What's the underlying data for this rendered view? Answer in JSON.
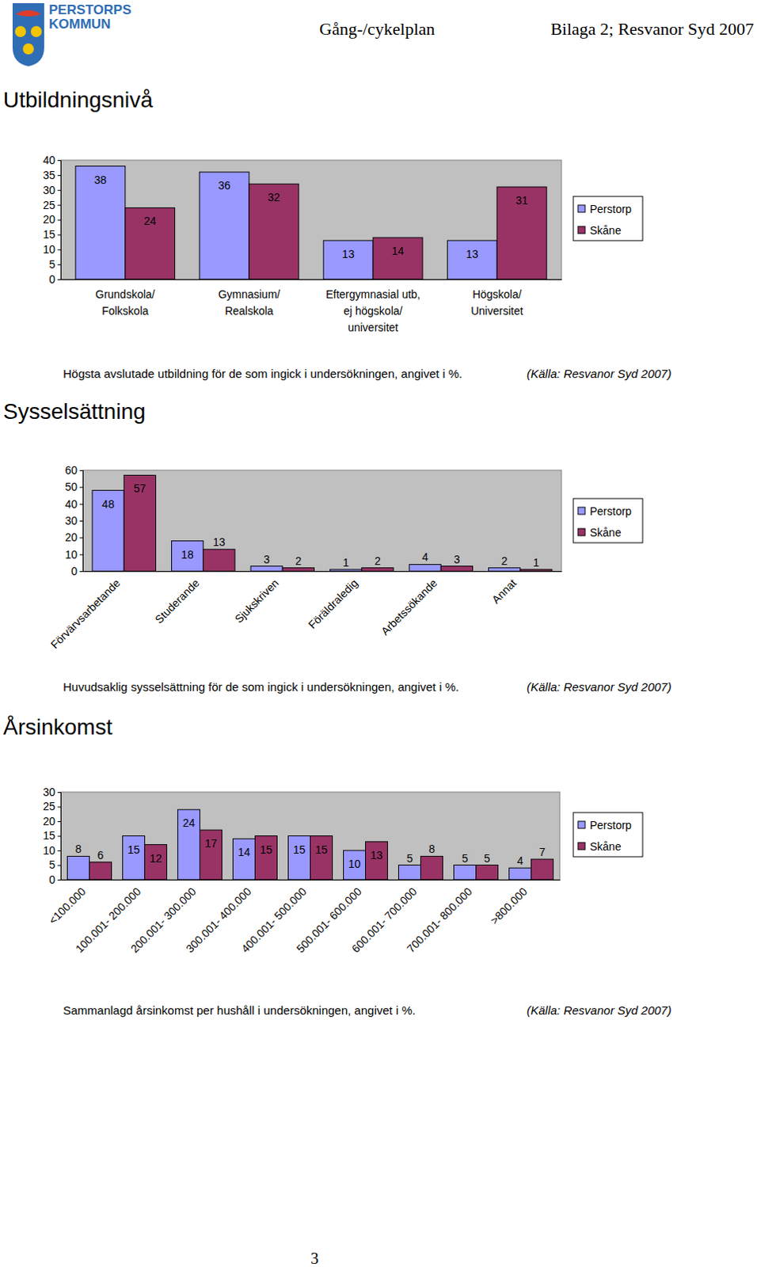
{
  "page": {
    "logo": [
      "PERSTORPS",
      "KOMMUN"
    ],
    "header_left": "Gång-/cykelplan",
    "header_right": "Bilaga 2; Resvanor Syd 2007",
    "page_number": "3"
  },
  "chart_data": [
    {
      "type": "bar",
      "title": "Utbildningsnivå",
      "subtitle": "Högsta avslutade utbildning för de som ingick i undersökningen, angivet i %.",
      "annotations": [
        "(Källa: Resvanor Syd 2007)"
      ],
      "categories": [
        "Grundskola/\nFolkskola",
        "Gymnasium/\nRealskola",
        "Eftergymnasial utb,\nej högskola/\nuniversitet",
        "Högskola/\nUniversitet"
      ],
      "series": [
        {
          "name": "Perstorp",
          "color": "#9999ff",
          "values": [
            38,
            36,
            13,
            13
          ]
        },
        {
          "name": "Skåne",
          "color": "#993366",
          "values": [
            24,
            32,
            14,
            31
          ]
        }
      ],
      "ylim": [
        0,
        40
      ],
      "yticks": [
        0,
        5,
        10,
        15,
        20,
        25,
        30,
        35,
        40
      ],
      "grid": false,
      "legend": "right",
      "data_labels": true
    },
    {
      "type": "bar",
      "title": "Sysselsättning",
      "subtitle": "Huvudsaklig sysselsättning för de som ingick i undersökningen, angivet i %.",
      "annotations": [
        "(Källa: Resvanor Syd 2007)"
      ],
      "categories": [
        "Förvärvsarbetande",
        "Studerande",
        "Sjukskriven",
        "Föräldraledig",
        "Arbetssökande",
        "Annat"
      ],
      "series": [
        {
          "name": "Perstorp",
          "color": "#9999ff",
          "values": [
            48,
            18,
            3,
            1,
            4,
            2
          ]
        },
        {
          "name": "Skåne",
          "color": "#993366",
          "values": [
            57,
            13,
            2,
            2,
            3,
            1
          ]
        }
      ],
      "ylim": [
        0,
        60
      ],
      "yticks": [
        0,
        10,
        20,
        30,
        40,
        50,
        60
      ],
      "grid": false,
      "legend": "right",
      "data_labels": true
    },
    {
      "type": "bar",
      "title": "Årsinkomst",
      "subtitle": "Sammanlagd årsinkomst per hushåll i undersökningen, angivet i %.",
      "annotations": [
        "(Källa: Resvanor Syd 2007)"
      ],
      "categories": [
        "<100.000",
        "100.001- 200.000",
        "200.001- 300.000",
        "300.001- 400.000",
        "400.001- 500.000",
        "500.001- 600.000",
        "600.001- 700.000",
        "700.001- 800.000",
        ">800.000"
      ],
      "series": [
        {
          "name": "Perstorp",
          "color": "#9999ff",
          "values": [
            8,
            15,
            24,
            14,
            15,
            10,
            5,
            5,
            4
          ]
        },
        {
          "name": "Skåne",
          "color": "#993366",
          "values": [
            6,
            12,
            17,
            15,
            15,
            13,
            8,
            5,
            7
          ]
        }
      ],
      "ylim": [
        0,
        30
      ],
      "yticks": [
        0,
        5,
        10,
        15,
        20,
        25,
        30
      ],
      "grid": false,
      "legend": "right",
      "data_labels": true
    }
  ]
}
